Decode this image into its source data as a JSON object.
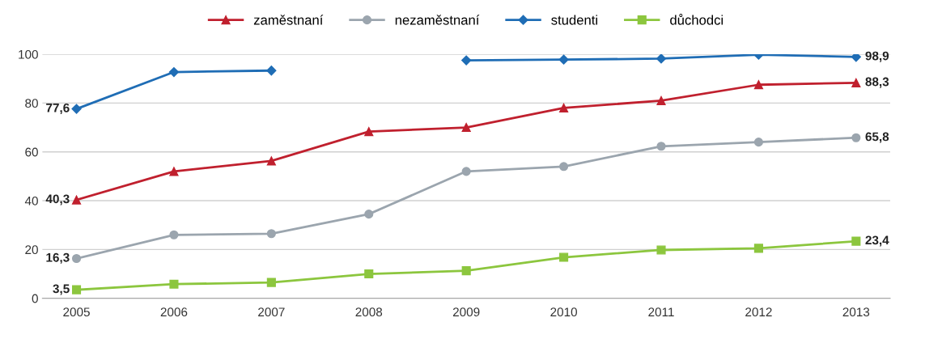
{
  "chart_data": {
    "type": "line",
    "categories": [
      "2005",
      "2006",
      "2007",
      "2008",
      "2009",
      "2010",
      "2011",
      "2012",
      "2013"
    ],
    "series": [
      {
        "name": "zaměstnaní",
        "color": "#c0202e",
        "marker": "triangle",
        "values": [
          40.3,
          52,
          56.3,
          68.3,
          70,
          78,
          81,
          87.5,
          88.3
        ],
        "value_labels": [
          "40,3",
          null,
          null,
          null,
          null,
          null,
          null,
          null,
          "88,3"
        ]
      },
      {
        "name": "nezaměstnaní",
        "color": "#9ba5ae",
        "marker": "circle",
        "values": [
          16.3,
          26,
          26.5,
          34.5,
          52,
          54,
          62.3,
          64,
          65.8
        ],
        "value_labels": [
          "16,3",
          null,
          null,
          null,
          null,
          null,
          null,
          null,
          "65,8"
        ]
      },
      {
        "name": "studenti",
        "color": "#1f6db5",
        "marker": "diamond",
        "values": [
          77.6,
          92.7,
          93.3,
          null,
          97.5,
          97.8,
          98.2,
          99.8,
          98.9
        ],
        "value_labels": [
          "77,6",
          null,
          null,
          null,
          null,
          null,
          null,
          null,
          "98,9"
        ]
      },
      {
        "name": "důchodci",
        "color": "#8cc63e",
        "marker": "square",
        "values": [
          3.5,
          5.8,
          6.5,
          10,
          11.3,
          16.8,
          19.8,
          20.5,
          23.4
        ],
        "value_labels": [
          "3,5",
          null,
          null,
          null,
          null,
          null,
          null,
          null,
          "23,4"
        ]
      }
    ],
    "ylim": [
      0,
      100
    ],
    "yticks": [
      0,
      20,
      40,
      60,
      80,
      100
    ],
    "grid": "y",
    "legend": "top",
    "line_style": "solid"
  }
}
